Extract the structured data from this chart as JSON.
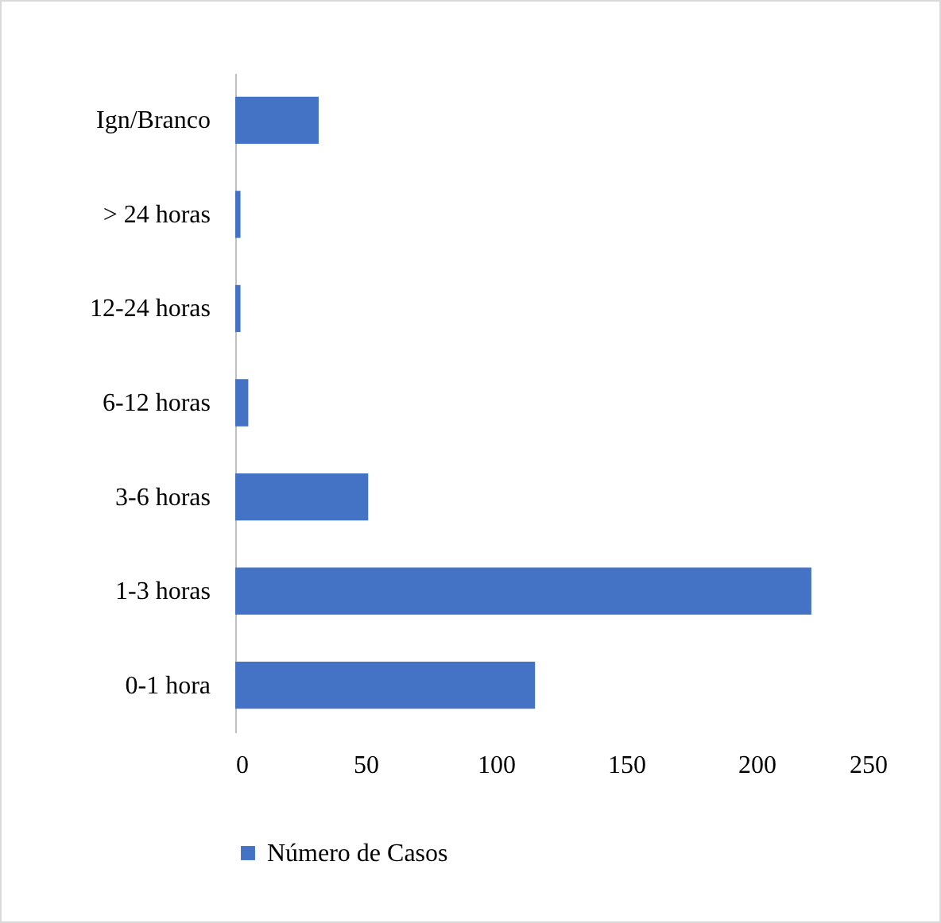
{
  "chart_data": {
    "type": "bar",
    "orientation": "horizontal",
    "categories": [
      "Ign/Branco",
      "> 24 horas",
      "12-24 horas",
      "6-12 horas",
      "3-6 horas",
      "1-3 horas",
      "0-1 hora"
    ],
    "series": [
      {
        "name": "Número de Casos",
        "color": "#4472c4",
        "values": [
          32,
          2,
          2,
          5,
          51,
          221,
          115
        ]
      }
    ],
    "xlim": [
      0,
      250
    ],
    "xticks": [
      0,
      50,
      100,
      150,
      200,
      250
    ],
    "grid": false,
    "legend": "bottom"
  }
}
